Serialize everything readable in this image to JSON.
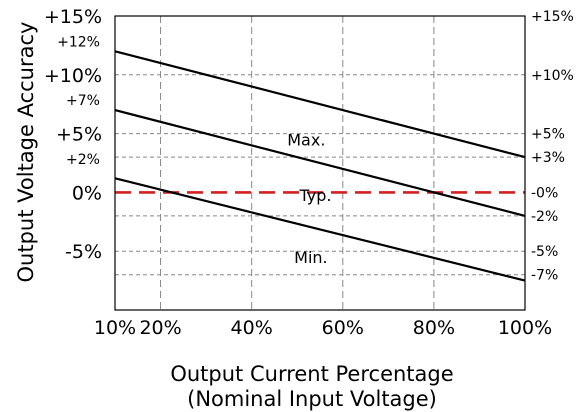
{
  "chart_data": {
    "type": "line",
    "title": "",
    "xlabel": "Output Current Percentage",
    "xlabel_line2": "(Nominal Input Voltage)",
    "ylabel": "Output Voltage Accuracy",
    "xlim": [
      10,
      100
    ],
    "ylim": [
      -10,
      15
    ],
    "grid": true,
    "x_ticks": [
      {
        "value": 10,
        "label": "10%"
      },
      {
        "value": 20,
        "label": "20%"
      },
      {
        "value": 40,
        "label": "40%"
      },
      {
        "value": 60,
        "label": "60%"
      },
      {
        "value": 80,
        "label": "80%"
      },
      {
        "value": 100,
        "label": "100%"
      }
    ],
    "y_ticks_left_major": [
      {
        "value": 15,
        "label": "+15%"
      },
      {
        "value": 10,
        "label": "+10%"
      },
      {
        "value": 5,
        "label": "+5%"
      },
      {
        "value": 0,
        "label": "0%"
      },
      {
        "value": -5,
        "label": "-5%"
      }
    ],
    "y_ticks_left_minor": [
      {
        "value": 12,
        "label": "+12%"
      },
      {
        "value": 7,
        "label": "+7%"
      },
      {
        "value": 2,
        "label": "+2%"
      }
    ],
    "y_ticks_right": [
      {
        "value": 15,
        "label": "+15%"
      },
      {
        "value": 10,
        "label": "+10%"
      },
      {
        "value": 5,
        "label": "+5%"
      },
      {
        "value": 3,
        "label": "+3%"
      },
      {
        "value": 0,
        "label": "-0%"
      },
      {
        "value": -2,
        "label": "-2%"
      },
      {
        "value": -5,
        "label": "-5%"
      },
      {
        "value": -7,
        "label": "-7%"
      }
    ],
    "series": [
      {
        "name": "Max.",
        "x": [
          10,
          100
        ],
        "y": [
          12,
          3
        ],
        "color": "#000000",
        "style": "solid"
      },
      {
        "name": "Typ.",
        "x": [
          10,
          100
        ],
        "y": [
          0,
          0
        ],
        "color": "#d42020",
        "style": "dashed"
      },
      {
        "name": "Min.",
        "x": [
          10,
          100
        ],
        "y": [
          7,
          -2
        ],
        "color": "#000000",
        "style": "solid"
      },
      {
        "name": "",
        "x": [
          10,
          100
        ],
        "y": [
          1.2,
          -7.5
        ],
        "color": "#000000",
        "style": "solid"
      }
    ],
    "annotations": [
      {
        "text": "Max.",
        "x": 52,
        "y": 4.5
      },
      {
        "text": "Typ.",
        "x": 54,
        "y": -0.2
      },
      {
        "text": "Min.",
        "x": 53,
        "y": -5.5
      }
    ]
  }
}
